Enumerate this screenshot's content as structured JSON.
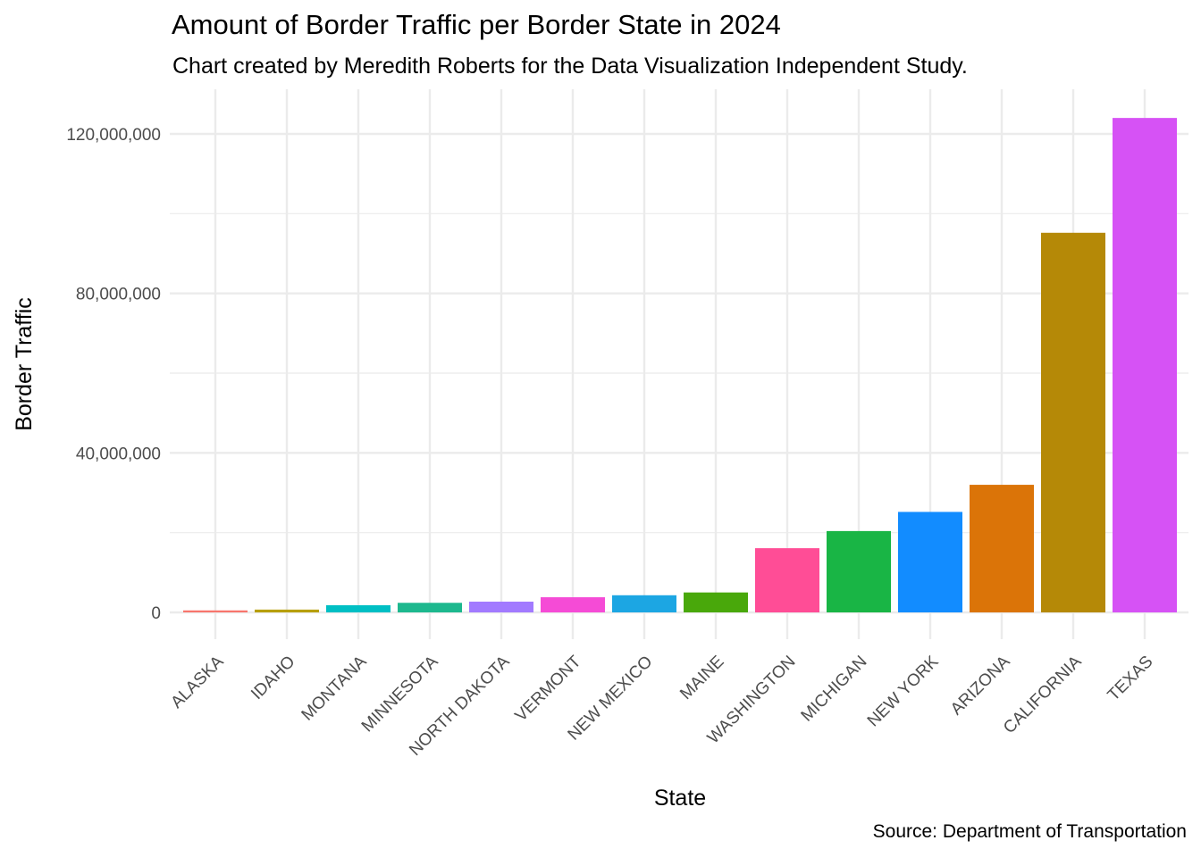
{
  "chart_data": {
    "type": "bar",
    "title": "Amount of Border Traffic per Border State in 2024",
    "subtitle": "Chart created by Meredith Roberts for the Data Visualization Independent Study.",
    "caption": "Source: Department of Transportation",
    "xlabel": "State",
    "ylabel": "Border Traffic",
    "categories": [
      "ALASKA",
      "IDAHO",
      "MONTANA",
      "MINNESOTA",
      "NORTH DAKOTA",
      "VERMONT",
      "NEW MEXICO",
      "MAINE",
      "WASHINGTON",
      "MICHIGAN",
      "NEW YORK",
      "ARIZONA",
      "CALIFORNIA",
      "TEXAS"
    ],
    "values": [
      500000,
      700000,
      1800000,
      2400000,
      2700000,
      3800000,
      4300000,
      5000000,
      16100000,
      20400000,
      25200000,
      32000000,
      95200000,
      124000000
    ],
    "colors": [
      "#F8766D",
      "#B79F00",
      "#00BFC4",
      "#1DB88E",
      "#A27AFF",
      "#F54BD6",
      "#1CA6E3",
      "#49A80B",
      "#FF4D96",
      "#19B545",
      "#128CFF",
      "#DB7408",
      "#B58907",
      "#D652F5"
    ],
    "ylim": [
      0,
      125000000
    ],
    "yticks": [
      0,
      40000000,
      80000000,
      120000000
    ],
    "ytick_labels": [
      "0",
      "40,000,000",
      "80,000,000",
      "120,000,000"
    ],
    "grid": true,
    "legend": "none",
    "background": "#ffffff",
    "grid_color": "#EBEBEB"
  }
}
